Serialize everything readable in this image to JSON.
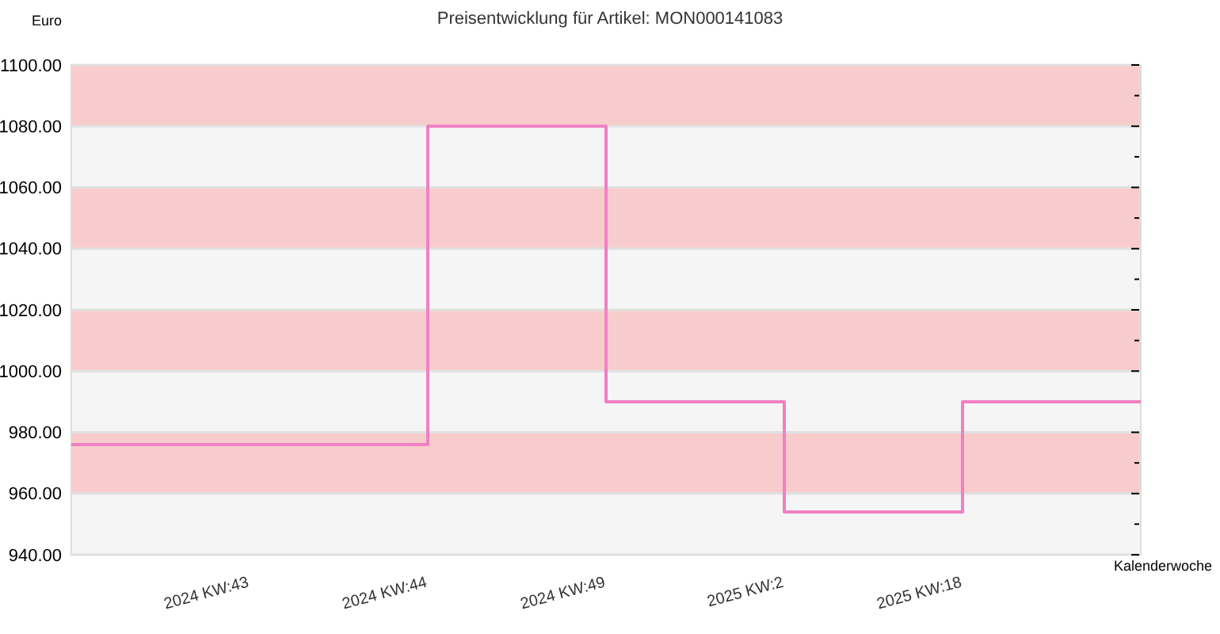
{
  "chart_data": {
    "type": "step",
    "title": "Preisentwicklung für Artikel: MON000141083",
    "xlabel": "Kalenderwoche",
    "ylabel": "Euro",
    "categories": [
      null,
      "2024 KW:43",
      "2024 KW:44",
      "2024 KW:49",
      "2025 KW:2",
      "2025 KW:18",
      null
    ],
    "series": [
      {
        "color": "#f080c4",
        "values": [
          976,
          976,
          1080,
          990,
          954,
          990,
          990
        ]
      }
    ],
    "ylim": [
      940,
      1100
    ],
    "yticks": [
      {
        "value": 940,
        "label": "940.00"
      },
      {
        "value": 960,
        "label": "960.00"
      },
      {
        "value": 980,
        "label": "980.00"
      },
      {
        "value": 1000,
        "label": "1000.00"
      },
      {
        "value": 1020,
        "label": "1020.00"
      },
      {
        "value": 1040,
        "label": "1040.00"
      },
      {
        "value": 1060,
        "label": "1060.00"
      },
      {
        "value": 1080,
        "label": "1080.00"
      },
      {
        "value": 1100,
        "label": "1100.00"
      }
    ],
    "bands": [
      {
        "axis": "y",
        "from": 1080,
        "to": 1100,
        "color": "#f8cccc"
      },
      {
        "axis": "y",
        "from": 1040,
        "to": 1060,
        "color": "#f8cccc"
      },
      {
        "axis": "y",
        "from": 1000,
        "to": 1020,
        "color": "#f8cccc"
      },
      {
        "axis": "y",
        "from": 960,
        "to": 980,
        "color": "#f8cccc"
      }
    ],
    "grid": "y"
  }
}
